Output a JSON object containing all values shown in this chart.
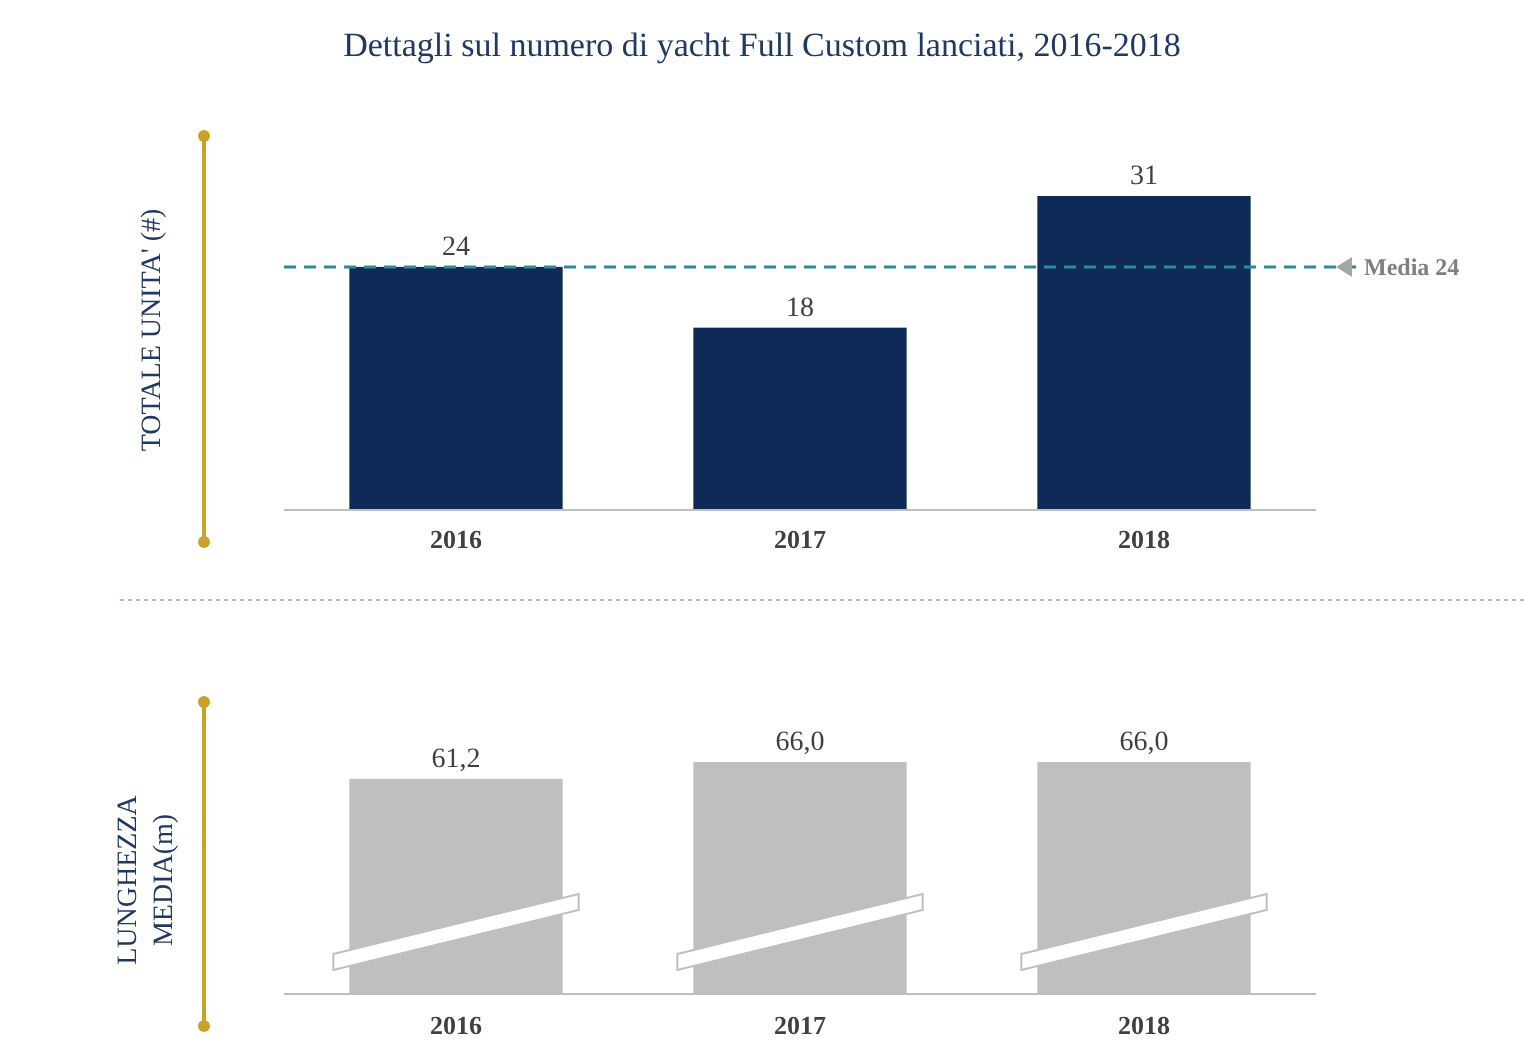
{
  "chart_data": [
    {
      "type": "bar",
      "title": "Dettagli sul numero di yacht Full Custom lanciati, 2016-2018",
      "ylabel": "TOTALE UNITA' (#)",
      "categories": [
        "2016",
        "2017",
        "2018"
      ],
      "values": [
        24,
        18,
        31
      ],
      "color": "#0e2a56",
      "tick_labels": "x",
      "data_labels": true,
      "ref_lines": [
        {
          "axis": "y",
          "value": 24,
          "label": "Media 24",
          "color": "#2f8a99",
          "line_style": "dashed"
        }
      ]
    },
    {
      "type": "bar",
      "ylabel": "LUNGHEZZA MEDIA(m)",
      "categories": [
        "2016",
        "2017",
        "2018"
      ],
      "values": [
        61.2,
        66.0,
        66.0
      ],
      "value_labels": [
        "61,2",
        "66,0",
        "66,0"
      ],
      "color": "#bfbfbf",
      "tick_labels": "x"
    }
  ]
}
